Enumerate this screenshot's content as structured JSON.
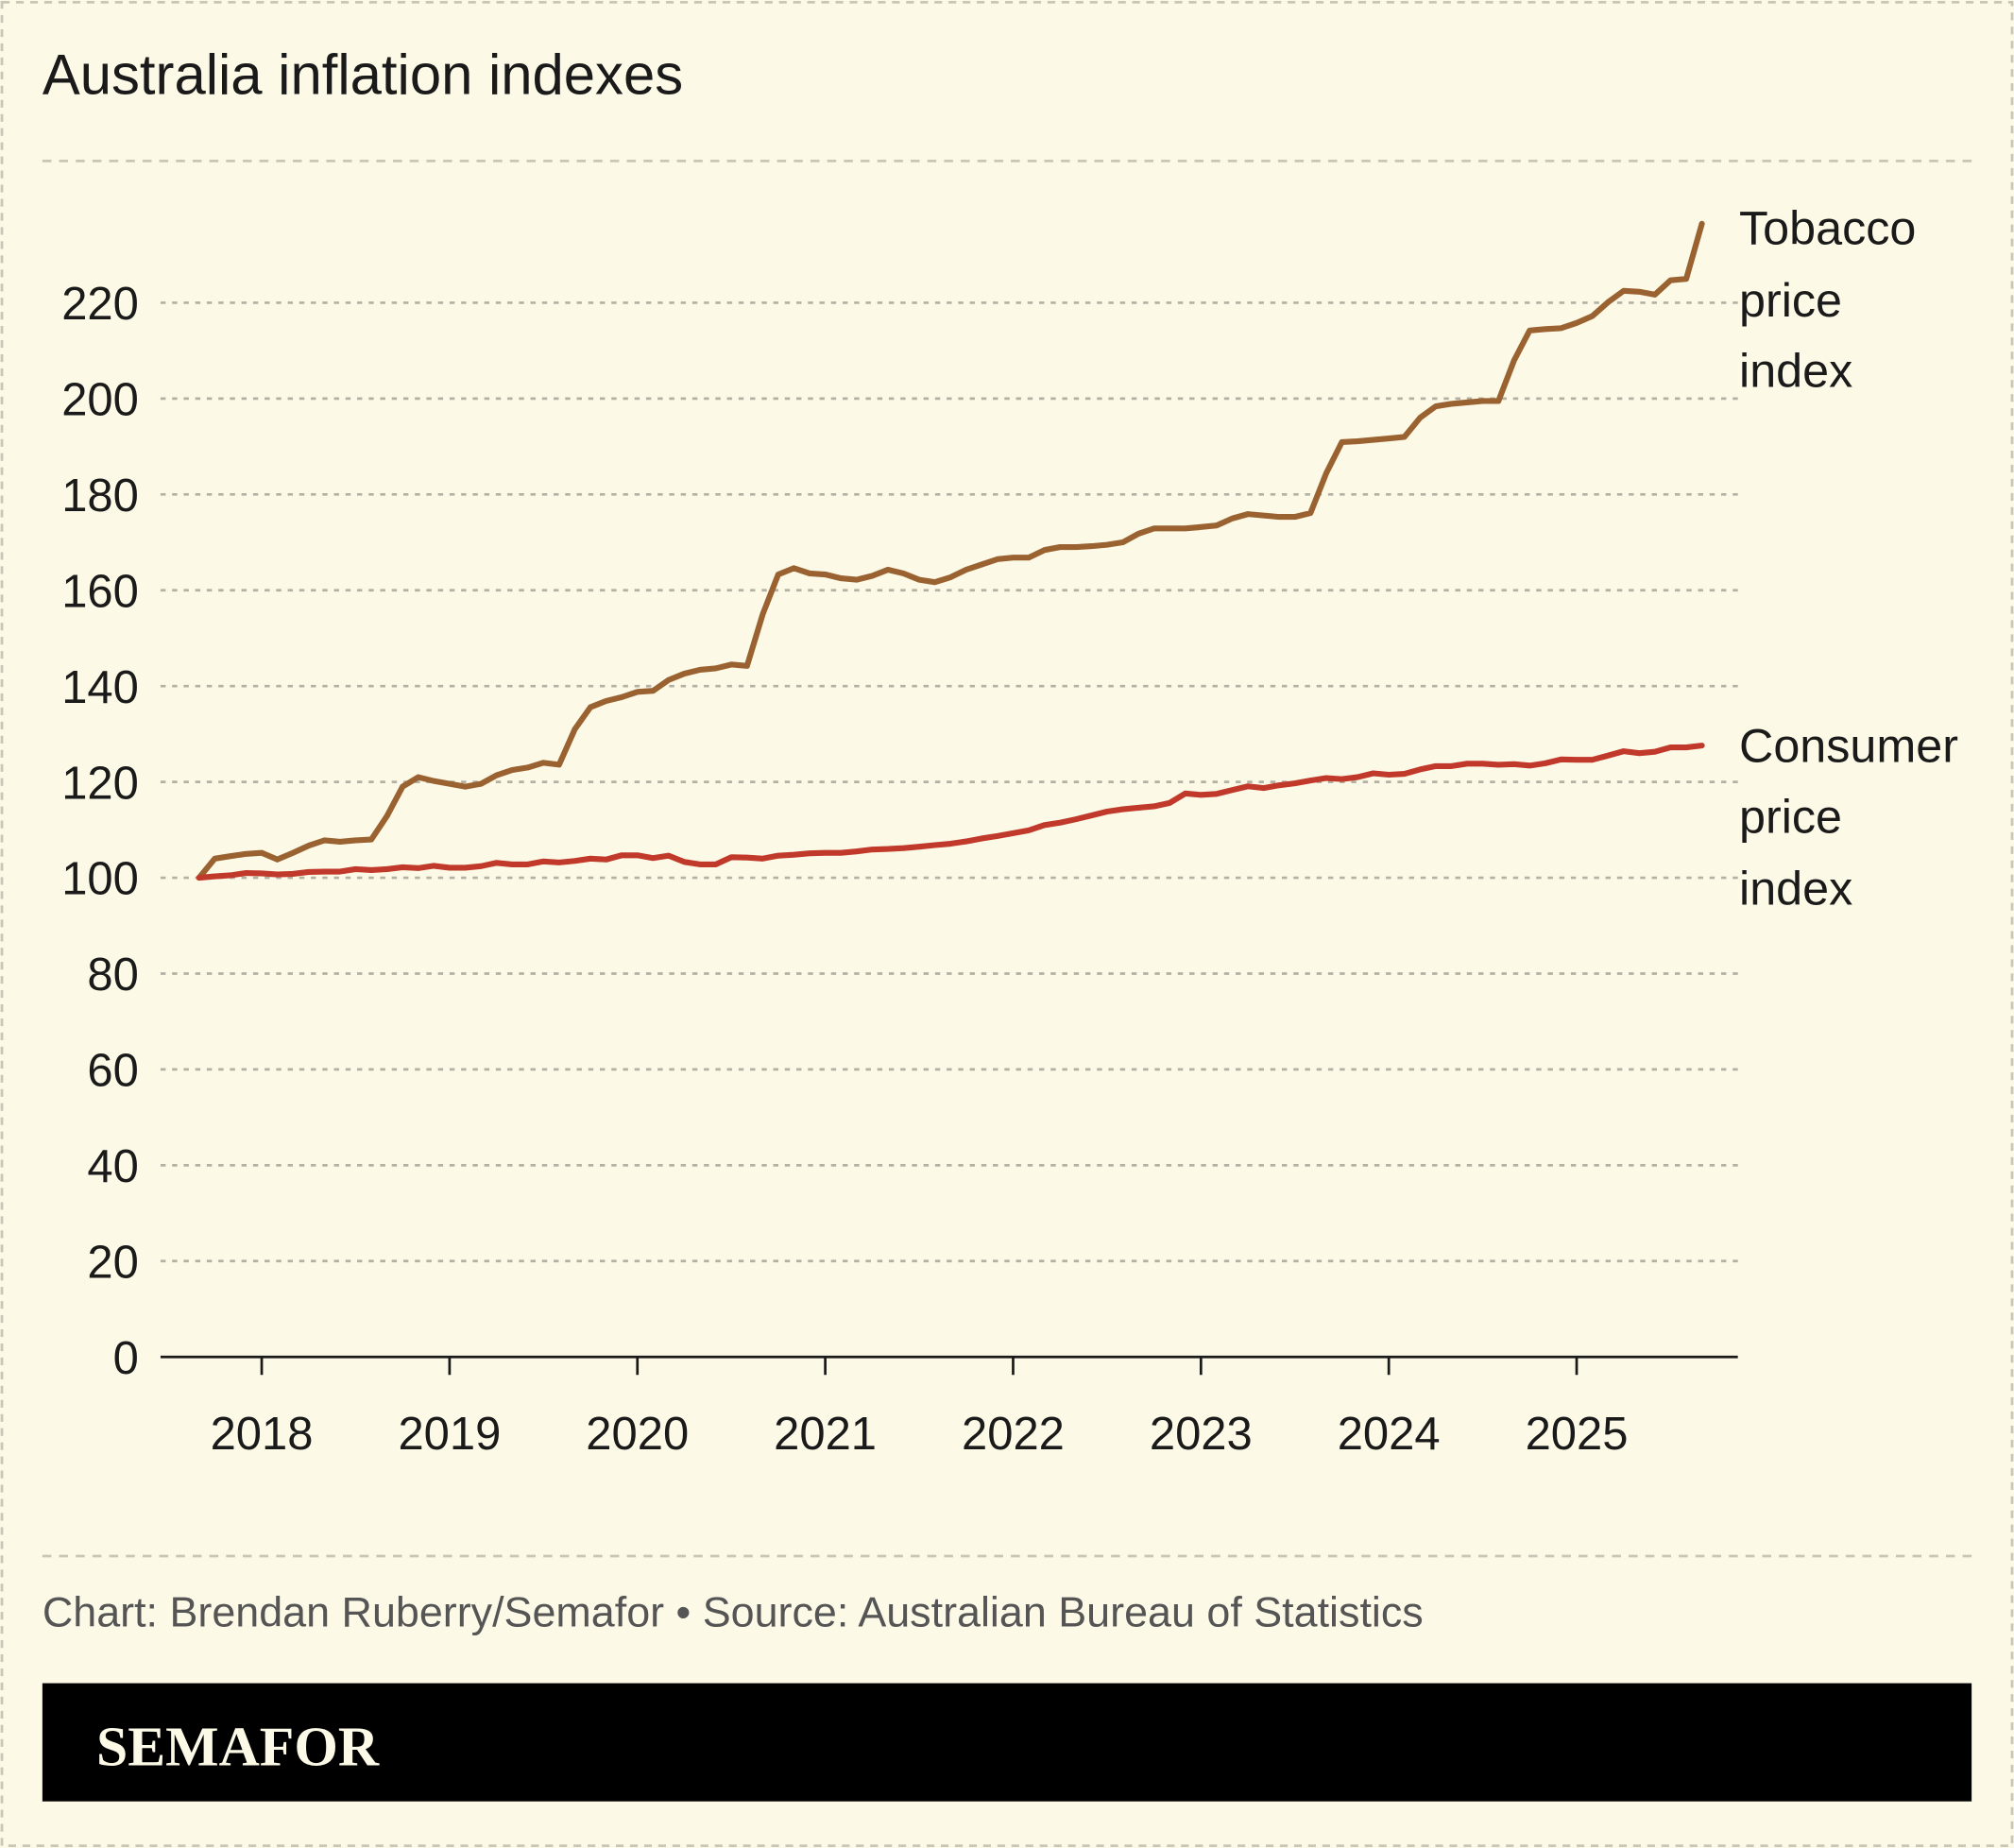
{
  "chart_data": {
    "type": "line",
    "title": "Australia inflation indexes",
    "xlabel": "",
    "ylabel": "",
    "ylim": [
      0,
      240
    ],
    "yticks": [
      0,
      20,
      40,
      60,
      80,
      100,
      120,
      140,
      160,
      180,
      200,
      220
    ],
    "xticks": [
      "2018",
      "2019",
      "2020",
      "2021",
      "2022",
      "2023",
      "2024",
      "2025"
    ],
    "x_start": "2017-09",
    "x_end": "2025-09",
    "x_frequency": "monthly",
    "grid": "horizontal dashed",
    "series": [
      {
        "name": "Tobacco price index",
        "label_lines": [
          "Tobacco",
          "price",
          "index"
        ],
        "color": "#9a6230",
        "values": [
          100,
          104,
          104.5,
          105,
          105.2,
          103.8,
          105.2,
          106.7,
          107.8,
          107.5,
          107.8,
          108,
          112.9,
          119,
          121,
          120.2,
          119.6,
          119,
          119.6,
          121.4,
          122.5,
          123,
          124,
          123.6,
          131,
          135.6,
          136.9,
          137.7,
          138.8,
          139,
          141.3,
          142.6,
          143.4,
          143.7,
          144.5,
          144.2,
          155,
          163.3,
          164.6,
          163.5,
          163.3,
          162.5,
          162.2,
          163,
          164.3,
          163.5,
          162.2,
          161.7,
          162.7,
          164.3,
          165.4,
          166.5,
          166.8,
          166.8,
          168.4,
          169,
          169,
          169.2,
          169.5,
          170,
          171.8,
          172.9,
          172.9,
          172.9,
          173.2,
          173.5,
          175,
          175.9,
          175.6,
          175.3,
          175.3,
          176.1,
          184.4,
          190.9,
          191.1,
          191.4,
          191.7,
          192,
          196,
          198.4,
          198.9,
          199.2,
          199.5,
          199.5,
          208,
          214.2,
          214.5,
          214.7,
          215.8,
          217.2,
          220.1,
          222.5,
          222.3,
          221.7,
          224.7,
          225,
          236.5
        ]
      },
      {
        "name": "Consumer price index",
        "label_lines": [
          "Consumer",
          "price",
          "index"
        ],
        "color": "#c0392b",
        "values": [
          100,
          100.3,
          100.5,
          101,
          100.9,
          100.7,
          100.8,
          101.2,
          101.3,
          101.3,
          101.8,
          101.6,
          101.8,
          102.2,
          102,
          102.5,
          102.1,
          102.1,
          102.4,
          103.1,
          102.8,
          102.8,
          103.4,
          103.2,
          103.5,
          104,
          103.8,
          104.7,
          104.7,
          104.1,
          104.6,
          103.3,
          102.8,
          102.8,
          104.3,
          104.2,
          104,
          104.6,
          104.8,
          105.1,
          105.2,
          105.2,
          105.5,
          105.9,
          106,
          106.2,
          106.5,
          106.8,
          107.1,
          107.6,
          108.2,
          108.7,
          109.3,
          109.9,
          111,
          111.5,
          112.2,
          113,
          113.8,
          114.3,
          114.6,
          114.9,
          115.6,
          117.6,
          117.3,
          117.5,
          118.3,
          119.1,
          118.7,
          119.3,
          119.7,
          120.3,
          120.8,
          120.6,
          121,
          121.8,
          121.5,
          121.7,
          122.6,
          123.3,
          123.3,
          123.8,
          123.8,
          123.6,
          123.7,
          123.4,
          123.9,
          124.7,
          124.6,
          124.6,
          125.5,
          126.4,
          126,
          126.3,
          127.2,
          127.2,
          127.6
        ]
      }
    ]
  },
  "footer": {
    "credit": "Chart: Brendan Ruberry/Semafor • Source: Australian Bureau of Statistics",
    "brand": "SEMAFOR"
  },
  "colors": {
    "background": "#fcf9e6",
    "grid": "#b3b0a4",
    "axis": "#1a1a1a",
    "brand_bar": "#000000",
    "brand_text": "#fcf9e6"
  }
}
